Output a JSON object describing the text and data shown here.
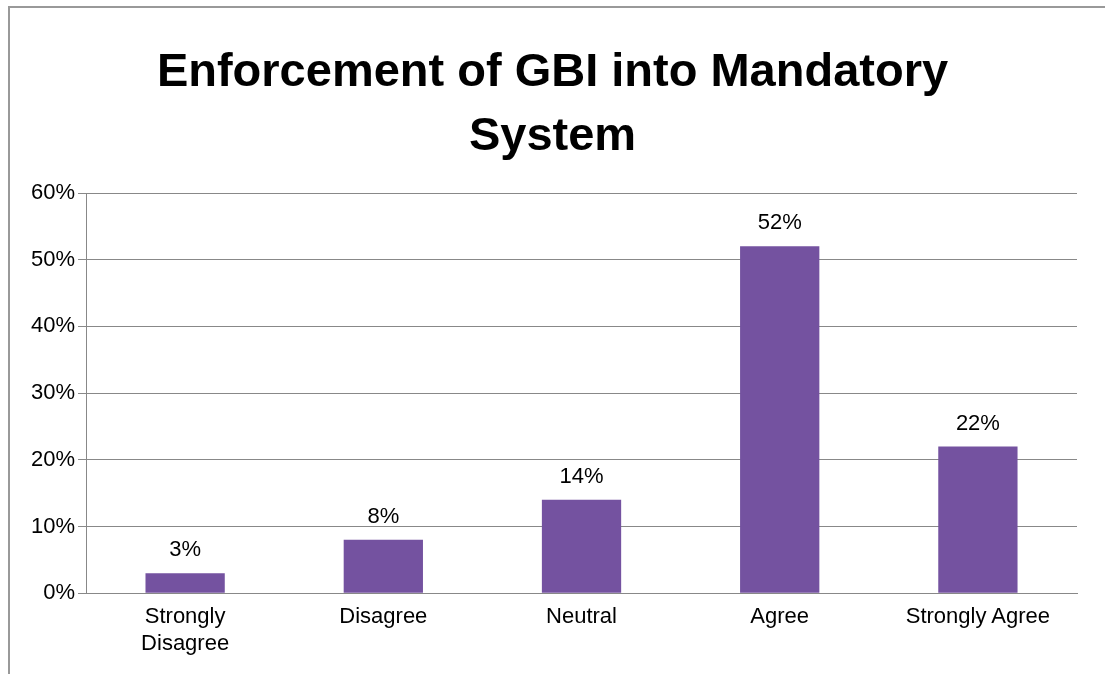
{
  "chart_data": {
    "type": "bar",
    "title": "Enforcement of GBI into Mandatory System",
    "categories": [
      "Strongly Disagree",
      "Disagree",
      "Neutral",
      "Agree",
      "Strongly Agree"
    ],
    "values": [
      3,
      8,
      14,
      52,
      22
    ],
    "color": "#7452a0",
    "value_labels": [
      "3%",
      "8%",
      "14%",
      "52%",
      "22%"
    ],
    "ylim": [
      0,
      60
    ],
    "yticks": [
      {
        "value": 0,
        "label": "0%"
      },
      {
        "value": 10,
        "label": "10%"
      },
      {
        "value": 20,
        "label": "20%"
      },
      {
        "value": 30,
        "label": "30%"
      },
      {
        "value": 40,
        "label": "40%"
      },
      {
        "value": 50,
        "label": "50%"
      },
      {
        "value": 60,
        "label": "60%"
      }
    ],
    "grid": "y",
    "legend": false
  }
}
